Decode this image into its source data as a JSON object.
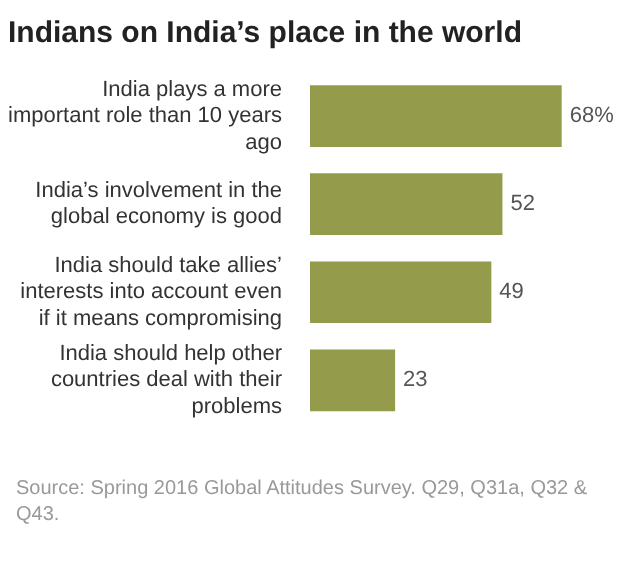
{
  "chart_data": {
    "type": "bar",
    "orientation": "horizontal",
    "title": "Indians on India’s place in the world",
    "categories": [
      "India plays a more important role than 10 years ago",
      "India’s involvement in the global economy is good",
      "India should take allies’ interests into account even if it means compromising",
      "India should help other countries deal with their problems"
    ],
    "values": [
      68,
      52,
      49,
      23
    ],
    "value_labels": [
      "68%",
      "52",
      "49",
      "23"
    ],
    "color": "#949b4b",
    "annotations": [
      "Source: Spring 2016 Global Attitudes Survey. Q29, Q31a, Q32 & Q43."
    ]
  }
}
